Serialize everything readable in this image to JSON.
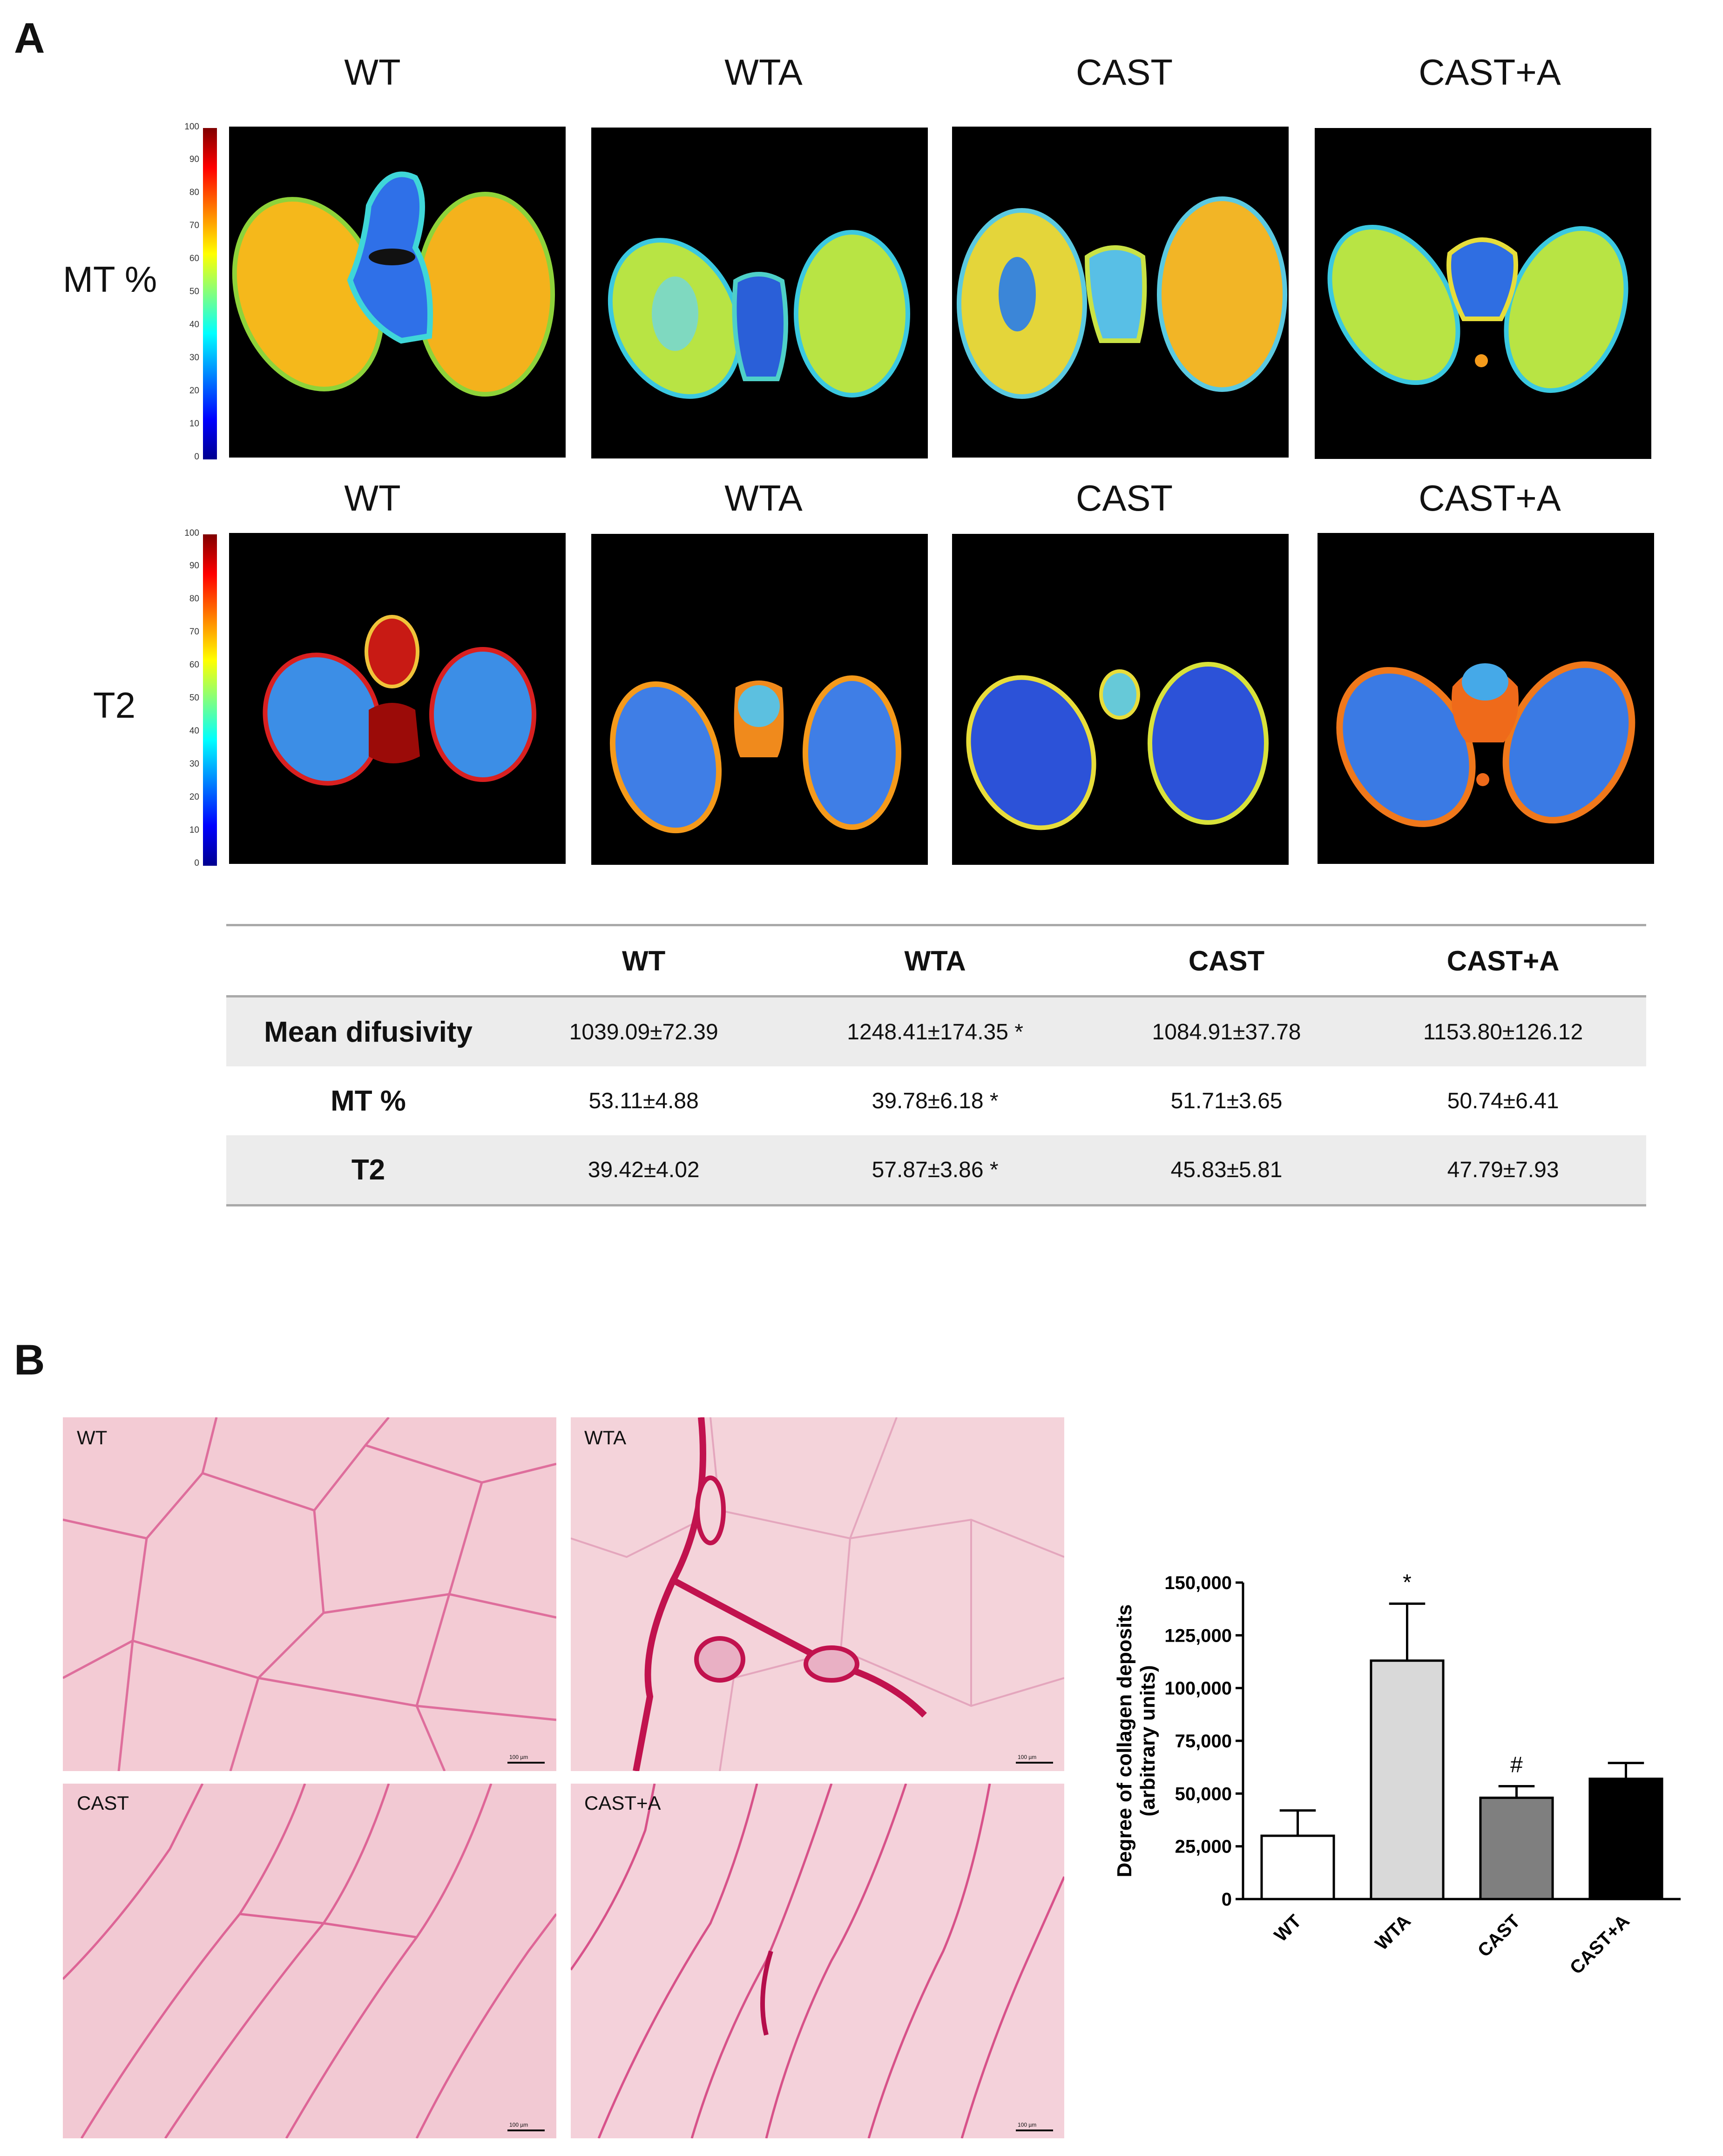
{
  "panel_a": {
    "letter": "A",
    "mt_row": {
      "label": "MT %",
      "titles": [
        "WT",
        "WTA",
        "CAST",
        "CAST+A"
      ]
    },
    "t2_row": {
      "label": "T2",
      "titles": [
        "WT",
        "WTA",
        "CAST",
        "CAST+A"
      ]
    },
    "colorbar_ticks": [
      "100",
      "90",
      "80",
      "70",
      "60",
      "50",
      "40",
      "30",
      "20",
      "10",
      "0"
    ],
    "table": {
      "headers": [
        "",
        "WT",
        "WTA",
        "CAST",
        "CAST+A"
      ],
      "rows": [
        {
          "label": "Mean difusivity",
          "values": [
            "1039.09±72.39",
            "1248.41±174.35 *",
            "1084.91±37.78",
            "1153.80±126.12"
          ]
        },
        {
          "label": "MT %",
          "values": [
            "53.11±4.88",
            "39.78±6.18 *",
            "51.71±3.65",
            "50.74±6.41"
          ]
        },
        {
          "label": "T2",
          "values": [
            "39.42±4.02",
            "57.87±3.86 *",
            "45.83±5.81",
            "47.79±7.93"
          ]
        }
      ]
    }
  },
  "panel_b": {
    "letter": "B",
    "histology_labels": [
      "WT",
      "WTA",
      "CAST",
      "CAST+A"
    ],
    "scale_bar_text": "100 µm",
    "colors": {
      "tissue": "#f2c6d0",
      "stain": "#d63f7e"
    }
  },
  "chart_data": {
    "type": "bar",
    "categories": [
      "WT",
      "WTA",
      "CAST",
      "CAST+A"
    ],
    "values": [
      30000,
      113000,
      48000,
      57000
    ],
    "errors": [
      12000,
      27000,
      5500,
      7500
    ],
    "bar_colors": [
      "#ffffff",
      "#d9d9d9",
      "#7f7f7f",
      "#000000"
    ],
    "annotations": [
      "",
      "*",
      "#",
      ""
    ],
    "ylabel": "Degree of collagen deposits\n(arbitrary units)",
    "ylabel_lines": [
      "Degree of collagen deposits",
      "(arbitrary units)"
    ],
    "ylim": [
      0,
      150000
    ],
    "yticks": [
      "150,000",
      "125,000",
      "100,000",
      "75,000",
      "50,000",
      "25,000",
      "0"
    ],
    "ytick_values": [
      150000,
      125000,
      100000,
      75000,
      50000,
      25000,
      0
    ],
    "grid": false
  }
}
